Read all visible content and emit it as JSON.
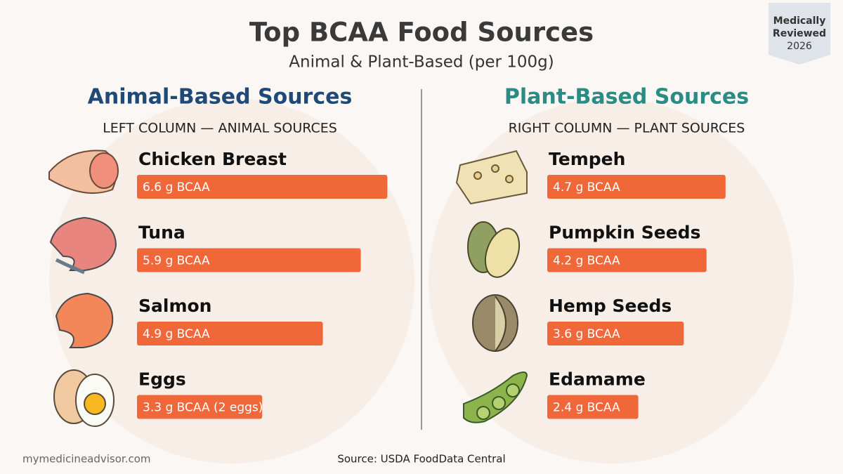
{
  "header": {
    "title": "Top BCAA Food Sources",
    "subtitle": "Animal & Plant-Based (per 100g)"
  },
  "badge": [
    "Medically",
    "Reviewed",
    "2026"
  ],
  "footer": {
    "site": "mymedicineadvisor.com",
    "source": "Source: USDA FoodData Central"
  },
  "chart_data": [
    {
      "type": "bar",
      "orientation": "horizontal",
      "title": "Animal-Based Sources",
      "subtitle": "LEFT COLUMN — ANIMAL SOURCES",
      "title_color": "#1f4a77",
      "categories": [
        "Chicken Breast",
        "Tuna",
        "Salmon",
        "Eggs"
      ],
      "values": [
        6.6,
        5.9,
        4.9,
        3.3
      ],
      "value_labels": [
        "6.6 g BCAA",
        "5.9 g BCAA",
        "4.9 g BCAA",
        "3.3 g BCAA (2 eggs)"
      ],
      "color": "#f0683a"
    },
    {
      "type": "bar",
      "orientation": "horizontal",
      "title": "Plant-Based Sources",
      "subtitle": "RIGHT COLUMN — PLANT SOURCES",
      "title_color": "#2b8c84",
      "categories": [
        "Tempeh",
        "Pumpkin Seeds",
        "Hemp Seeds",
        "Edamame"
      ],
      "values": [
        4.7,
        4.2,
        3.6,
        2.4
      ],
      "value_labels": [
        "4.7 g BCAA",
        "4.2 g BCAA",
        "3.6 g BCAA",
        "2.4 g BCAA"
      ],
      "color": "#f0683a"
    }
  ]
}
